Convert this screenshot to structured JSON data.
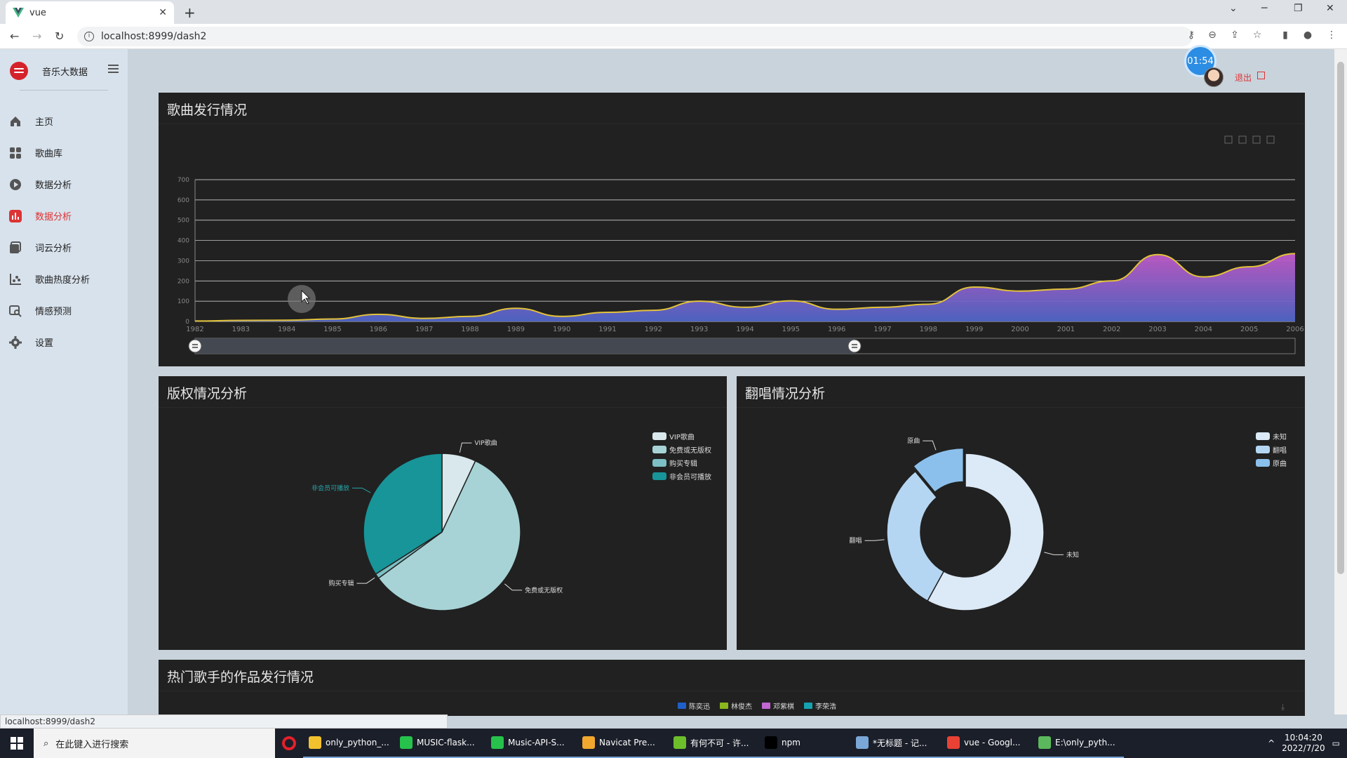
{
  "browser": {
    "tab_title": "vue",
    "url": "localhost:8999/dash2",
    "status_url": "localhost:8999/dash2"
  },
  "sidebar": {
    "brand": "音乐大数据",
    "items": [
      {
        "label": "主页",
        "icon": "home-icon"
      },
      {
        "label": "歌曲库",
        "icon": "grid-icon"
      },
      {
        "label": "数据分析",
        "icon": "play-icon"
      },
      {
        "label": "数据分析",
        "icon": "bar-chart-icon",
        "active": true
      },
      {
        "label": "词云分析",
        "icon": "wordcloud-icon"
      },
      {
        "label": "歌曲热度分析",
        "icon": "scatter-icon"
      },
      {
        "label": "情感预测",
        "icon": "search-chart-icon"
      },
      {
        "label": "设置",
        "icon": "gear-icon"
      }
    ]
  },
  "header": {
    "timer": "01:54",
    "logout": "退出"
  },
  "panels": {
    "release": "歌曲发行情况",
    "copyright": "版权情况分析",
    "cover": "翻唱情况分析",
    "singers": "热门歌手的作品发行情况"
  },
  "chart_data": [
    {
      "type": "area",
      "title": "歌曲发行情况",
      "x": [
        "1982",
        "1983",
        "1984",
        "1985",
        "1986",
        "1987",
        "1988",
        "1989",
        "1990",
        "1991",
        "1992",
        "1993",
        "1994",
        "1995",
        "1996",
        "1997",
        "1998",
        "1999",
        "2000",
        "2001",
        "2002",
        "2003",
        "2004",
        "2005",
        "2006"
      ],
      "values": [
        2,
        5,
        6,
        12,
        35,
        15,
        25,
        65,
        25,
        45,
        55,
        100,
        70,
        102,
        60,
        70,
        85,
        170,
        150,
        160,
        200,
        330,
        220,
        270,
        335
      ],
      "ylim": [
        0,
        700
      ],
      "yticks": [
        0,
        100,
        200,
        300,
        400,
        500,
        600,
        700
      ],
      "grid": true
    },
    {
      "type": "pie",
      "title": "版权情况分析",
      "series": [
        {
          "name": "VIP歌曲",
          "value": 7,
          "color": "#d8e8ec"
        },
        {
          "name": "免费或无版权",
          "value": 58,
          "color": "#a7d3d6"
        },
        {
          "name": "购买专辑",
          "value": 1,
          "color": "#7cbfc4"
        },
        {
          "name": "非会员可播放",
          "value": 34,
          "color": "#179599"
        }
      ],
      "legend": "top-right"
    },
    {
      "type": "pie",
      "title": "翻唱情况分析",
      "series": [
        {
          "name": "未知",
          "value": 58,
          "color": "#dce9f6"
        },
        {
          "name": "翻唱",
          "value": 31,
          "color": "#b4d6f2"
        },
        {
          "name": "原曲",
          "value": 11,
          "color": "#8cc0ec"
        }
      ],
      "legend": "top-right"
    },
    {
      "type": "line",
      "title": "热门歌手的作品发行情况",
      "series": [
        {
          "name": "陈奕迅",
          "color": "#1f5fc8"
        },
        {
          "name": "林俊杰",
          "color": "#8ab51e"
        },
        {
          "name": "邓紫棋",
          "color": "#c166d3"
        },
        {
          "name": "李荣浩",
          "color": "#16a2b0"
        }
      ],
      "legend": "top"
    }
  ],
  "taskbar": {
    "search_placeholder": "在此键入进行搜索",
    "tasks": [
      {
        "label": "only_python_...",
        "color": "#f2c12e"
      },
      {
        "label": "MUSIC-flask...",
        "color": "#27c24c"
      },
      {
        "label": "Music-API-S...",
        "color": "#27c24c"
      },
      {
        "label": "Navicat Pre...",
        "color": "#f2a72e"
      },
      {
        "label": "有何不可 - 许...",
        "color": "#6cbf2a"
      },
      {
        "label": "npm",
        "color": "#000000"
      },
      {
        "label": "*无标题 - 记...",
        "color": "#7aa7d8"
      },
      {
        "label": "vue - Googl...",
        "color": "#e94235"
      },
      {
        "label": "E:\\only_pyth...",
        "color": "#5cb85c"
      }
    ],
    "time": "10:04:20",
    "date": "2022/7/20"
  }
}
